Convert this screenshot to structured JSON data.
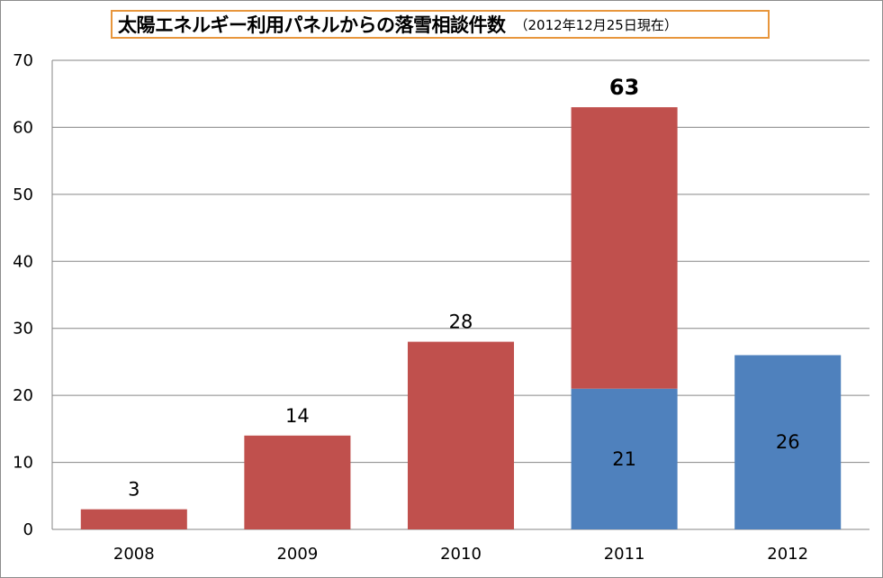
{
  "chart_data": {
    "type": "bar",
    "stacked": true,
    "title": "太陽エネルギー利用パネルからの落雪相談件数",
    "subtitle": "（2012年12月25日現在）",
    "xlabel": "",
    "ylabel": "",
    "categories": [
      "2008",
      "2009",
      "2010",
      "2011",
      "2012"
    ],
    "ylim": [
      0,
      70
    ],
    "yticks": [
      0,
      10,
      20,
      30,
      40,
      50,
      60,
      70
    ],
    "grid": true,
    "legend": "none",
    "series": [
      {
        "color": "#4f81bd",
        "values": [
          0,
          0,
          0,
          21,
          26
        ]
      },
      {
        "color": "#c0504d",
        "values": [
          3,
          14,
          28,
          42,
          0
        ]
      }
    ],
    "data_labels": [
      {
        "category": "2008",
        "text": "3",
        "anchor": "above"
      },
      {
        "category": "2009",
        "text": "14",
        "anchor": "above"
      },
      {
        "category": "2010",
        "text": "28",
        "anchor": "above"
      },
      {
        "category": "2011",
        "text": "63",
        "anchor": "above",
        "bold": true
      },
      {
        "category": "2011",
        "text": "21",
        "anchor": "inside"
      },
      {
        "category": "2012",
        "text": "26",
        "anchor": "inside"
      }
    ]
  }
}
